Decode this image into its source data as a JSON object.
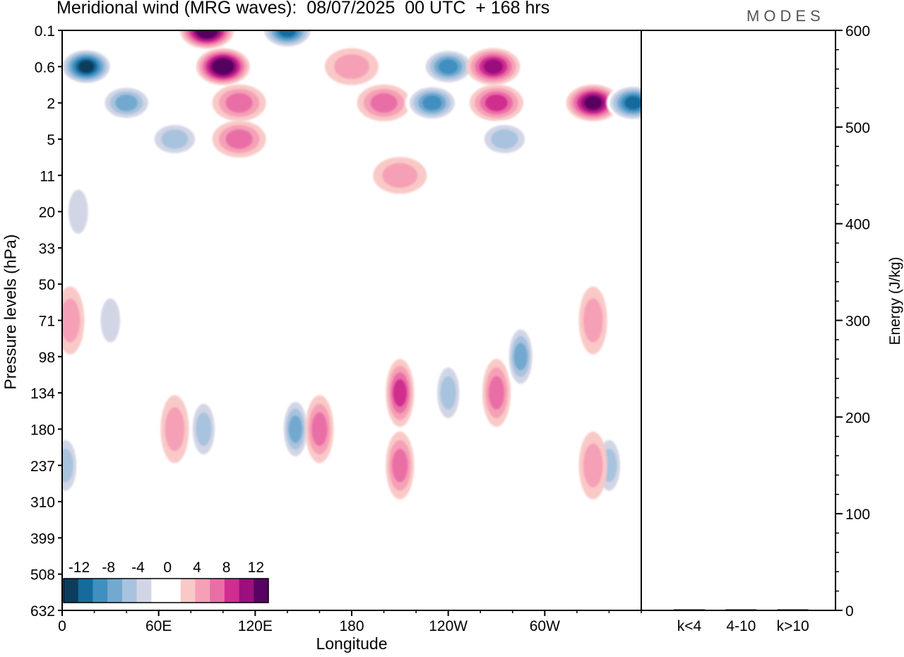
{
  "title": "Meridional wind (MRG waves):  08/07/2025  00 UTC  + 168 hrs",
  "logo_text": "MODES",
  "chart_data": {
    "type": "heatmap",
    "title": "Meridional wind (MRG waves):  08/07/2025  00 UTC  + 168 hrs",
    "xlabel": "Longitude",
    "ylabel": "Pressure levels (hPa)",
    "x_ticks": [
      "0",
      "60E",
      "120E",
      "180",
      "120W",
      "60W"
    ],
    "x_range": [
      0,
      360
    ],
    "y_ticks": [
      "0.1",
      "0.6",
      "2",
      "5",
      "11",
      "20",
      "33",
      "50",
      "71",
      "98",
      "134",
      "180",
      "237",
      "310",
      "399",
      "508",
      "632"
    ],
    "y_reversed": true,
    "colorbar": {
      "levels": [
        -14,
        -12,
        -10,
        -8,
        -6,
        -4,
        -2,
        2,
        4,
        6,
        8,
        10,
        12,
        14
      ],
      "labels": [
        "-12",
        "-8",
        "-4",
        "0",
        "4",
        "8",
        "12"
      ],
      "colors": [
        "#0d3d5c",
        "#146b9c",
        "#3f8fc0",
        "#73a9cf",
        "#a8c3de",
        "#d2d5e6",
        "#ffffff",
        "#ffffff",
        "#f9c9c7",
        "#f5a0b6",
        "#ea6ea6",
        "#cf2d8f",
        "#9b0f7e",
        "#560361"
      ]
    },
    "features": [
      {
        "lon": 15,
        "level": "0.6",
        "value": -14
      },
      {
        "lon": 40,
        "level": "2",
        "value": -8
      },
      {
        "lon": 70,
        "level": "5",
        "value": -6
      },
      {
        "lon": 90,
        "level": "0.1",
        "value": 14
      },
      {
        "lon": 100,
        "level": "0.6",
        "value": 14
      },
      {
        "lon": 110,
        "level": "2",
        "value": 6
      },
      {
        "lon": 110,
        "level": "5",
        "value": 6
      },
      {
        "lon": 140,
        "level": "0.1",
        "value": -12
      },
      {
        "lon": 180,
        "level": "0.6",
        "value": 4
      },
      {
        "lon": 200,
        "level": "2",
        "value": 6
      },
      {
        "lon": 210,
        "level": "11",
        "value": 4
      },
      {
        "lon": 240,
        "level": "0.6",
        "value": -10
      },
      {
        "lon": 230,
        "level": "2",
        "value": -10
      },
      {
        "lon": 268,
        "level": "0.6",
        "value": 10
      },
      {
        "lon": 270,
        "level": "2",
        "value": 8
      },
      {
        "lon": 275,
        "level": "5",
        "value": -6
      },
      {
        "lon": 330,
        "level": "2",
        "value": 12
      },
      {
        "lon": 355,
        "level": "2",
        "value": -12
      },
      {
        "lon": 10,
        "level": "20",
        "value": -4
      },
      {
        "lon": 30,
        "level": "71",
        "value": -4
      },
      {
        "lon": 5,
        "level": "71",
        "value": 4
      },
      {
        "lon": 88,
        "level": "180",
        "value": -6
      },
      {
        "lon": 70,
        "level": "180",
        "value": 4
      },
      {
        "lon": 145,
        "level": "180",
        "value": -8
      },
      {
        "lon": 160,
        "level": "180",
        "value": 6
      },
      {
        "lon": 210,
        "level": "134",
        "value": 8
      },
      {
        "lon": 210,
        "level": "237",
        "value": 6
      },
      {
        "lon": 240,
        "level": "134",
        "value": -6
      },
      {
        "lon": 270,
        "level": "134",
        "value": 6
      },
      {
        "lon": 285,
        "level": "98",
        "value": -8
      },
      {
        "lon": 340,
        "level": "237",
        "value": -6
      },
      {
        "lon": 2,
        "level": "237",
        "value": -6
      },
      {
        "lon": 330,
        "level": "71",
        "value": 4
      },
      {
        "lon": 330,
        "level": "237",
        "value": 4
      }
    ],
    "energy_panel": {
      "ylabel": "Energy (J/kg)",
      "ylim": [
        0,
        600
      ],
      "y_ticks": [
        "0",
        "100",
        "200",
        "300",
        "400",
        "500",
        "600"
      ],
      "categories": [
        "k<4",
        "4-10",
        "k>10"
      ],
      "values": [
        0,
        1,
        0
      ]
    }
  }
}
